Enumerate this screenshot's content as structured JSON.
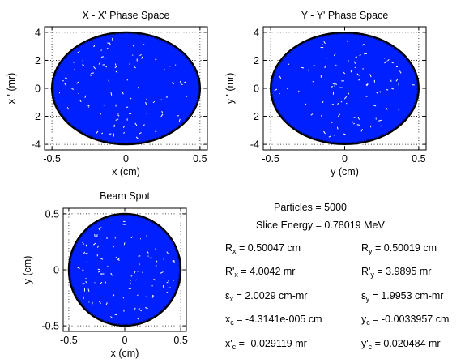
{
  "colors": {
    "fill": "#0020ff",
    "edge": "#000000",
    "grid": "#000000",
    "background": "#ffffff"
  },
  "chart_data": [
    {
      "type": "scatter",
      "shape": "filled-ellipse",
      "title": "X - X' Phase Space",
      "xlabel": "x (cm)",
      "ylabel": "x ' (mr)",
      "xlim": [
        -0.55,
        0.55
      ],
      "ylim": [
        -4.4,
        4.4
      ],
      "xticks": [
        -0.5,
        0,
        0.5
      ],
      "xtick_labels": [
        "-0.5",
        "0",
        "0.5"
      ],
      "yticks": [
        -4,
        -2,
        0,
        2,
        4
      ],
      "ytick_labels": [
        "-4",
        "-2",
        "0",
        "2",
        "4"
      ],
      "grid": "dotted",
      "ellipse": {
        "cx": 0,
        "cy": 0,
        "rx": 0.50047,
        "ry": 4.0042
      },
      "points": 5000
    },
    {
      "type": "scatter",
      "shape": "filled-ellipse",
      "title": "Y - Y' Phase Space",
      "xlabel": "y (cm)",
      "ylabel": "y ' (mr)",
      "xlim": [
        -0.55,
        0.55
      ],
      "ylim": [
        -4.4,
        4.4
      ],
      "xticks": [
        -0.5,
        0,
        0.5
      ],
      "xtick_labels": [
        "-0.5",
        "0",
        "0.5"
      ],
      "yticks": [
        -4,
        -2,
        0,
        2,
        4
      ],
      "ytick_labels": [
        "-4",
        "-2",
        "0",
        "2",
        "4"
      ],
      "grid": "dotted",
      "ellipse": {
        "cx": 0,
        "cy": 0,
        "rx": 0.50019,
        "ry": 3.9895
      },
      "points": 5000
    },
    {
      "type": "scatter",
      "shape": "filled-circle",
      "title": "Beam Spot",
      "xlabel": "x (cm)",
      "ylabel": "y (cm)",
      "xlim": [
        -0.55,
        0.55
      ],
      "ylim": [
        -0.55,
        0.55
      ],
      "xticks": [
        -0.5,
        0,
        0.5
      ],
      "xtick_labels": [
        "-0.5",
        "0",
        "0.5"
      ],
      "yticks": [
        -0.5,
        0,
        0.5
      ],
      "ytick_labels": [
        "-0.5",
        "0",
        "0.5"
      ],
      "grid": "dotted",
      "ellipse": {
        "cx": 0,
        "cy": 0,
        "rx": 0.50047,
        "ry": 0.50019
      },
      "points": 5000
    }
  ],
  "stats": {
    "particles": "Particles = 5000",
    "slice_energy": "Slice Energy = 0.78019 MeV",
    "rows": [
      {
        "lhs": "R",
        "sub": "x",
        "rhs": " = 0.50047 cm"
      },
      {
        "lhs": "R",
        "sub": "y",
        "rhs": " = 0.50019 cm"
      },
      {
        "lhs": "R'",
        "sub": "x",
        "rhs": " = 4.0042 mr"
      },
      {
        "lhs": "R'",
        "sub": "y",
        "rhs": " = 3.9895 mr"
      },
      {
        "lhs": "ε",
        "sub": "x",
        "rhs": " = 2.0029 cm-mr"
      },
      {
        "lhs": "ε",
        "sub": "y",
        "rhs": " = 1.9953 cm-mr"
      },
      {
        "lhs": "x",
        "sub": "c",
        "rhs": " = -4.3141e-005 cm"
      },
      {
        "lhs": "y",
        "sub": "c",
        "rhs": " = -0.0033957 cm"
      },
      {
        "lhs": "x'",
        "sub": "c",
        "rhs": " = -0.029119 mr"
      },
      {
        "lhs": "y'",
        "sub": "c",
        "rhs": " = 0.020484 mr"
      }
    ]
  }
}
